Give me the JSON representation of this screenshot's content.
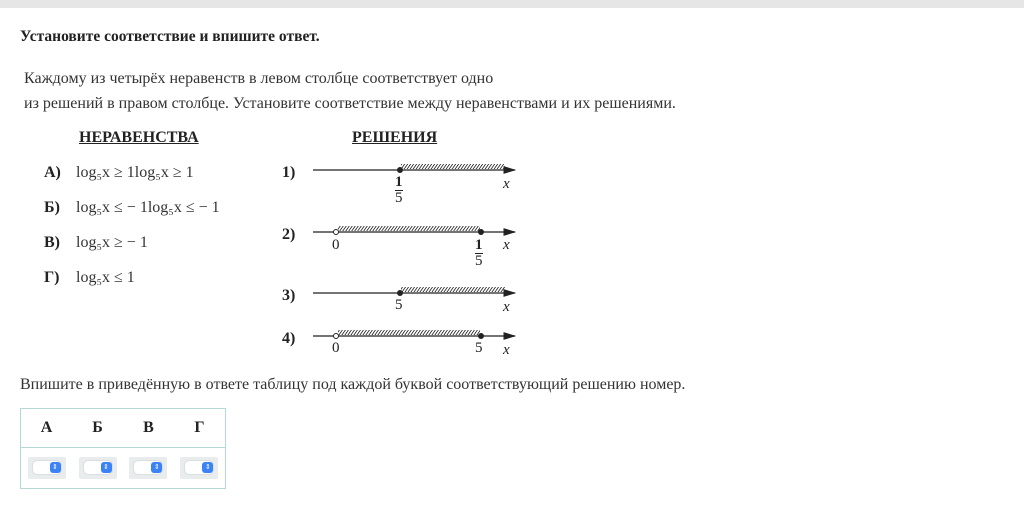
{
  "title": "Установите соответствие и впишите ответ.",
  "paragraph": [
    "Каждому из четырёх неравенств в левом столбце соответствует одно",
    "из решений в правом столбце. Установите соответствие между неравенствами и их решениями."
  ],
  "headers": {
    "left": "НЕРАВЕНСТВА",
    "right": "РЕШЕНИЯ"
  },
  "inequalities": [
    {
      "letter": "А)",
      "text": "log₅x ≥ 1log₅x ≥ 1"
    },
    {
      "letter": "Б)",
      "text": "log₅x ≤ − 1log₅x ≤ − 1"
    },
    {
      "letter": "В)",
      "text": "log₅x ≥ − 1"
    },
    {
      "letter": "Г)",
      "text": "log₅x ≤ 1"
    }
  ],
  "solutions": [
    {
      "label": "1)",
      "points": [
        "1",
        "5"
      ],
      "var": "x",
      "desc": "[1/5, +∞)"
    },
    {
      "label": "2)",
      "zero": "0",
      "points": [
        "1",
        "5"
      ],
      "var": "x",
      "desc": "(0, 1/5]"
    },
    {
      "label": "3)",
      "point": "5",
      "var": "x",
      "desc": "[5, +∞)"
    },
    {
      "label": "4)",
      "zero": "0",
      "point": "5",
      "var": "x",
      "desc": "(0, 5]"
    }
  ],
  "instruction": "Впишите в приведённую в ответе таблицу под каждой буквой соответствующий решению номер.",
  "answer_table": {
    "headers": [
      "А",
      "Б",
      "В",
      "Г"
    ],
    "values": [
      "",
      "",
      "",
      ""
    ]
  }
}
